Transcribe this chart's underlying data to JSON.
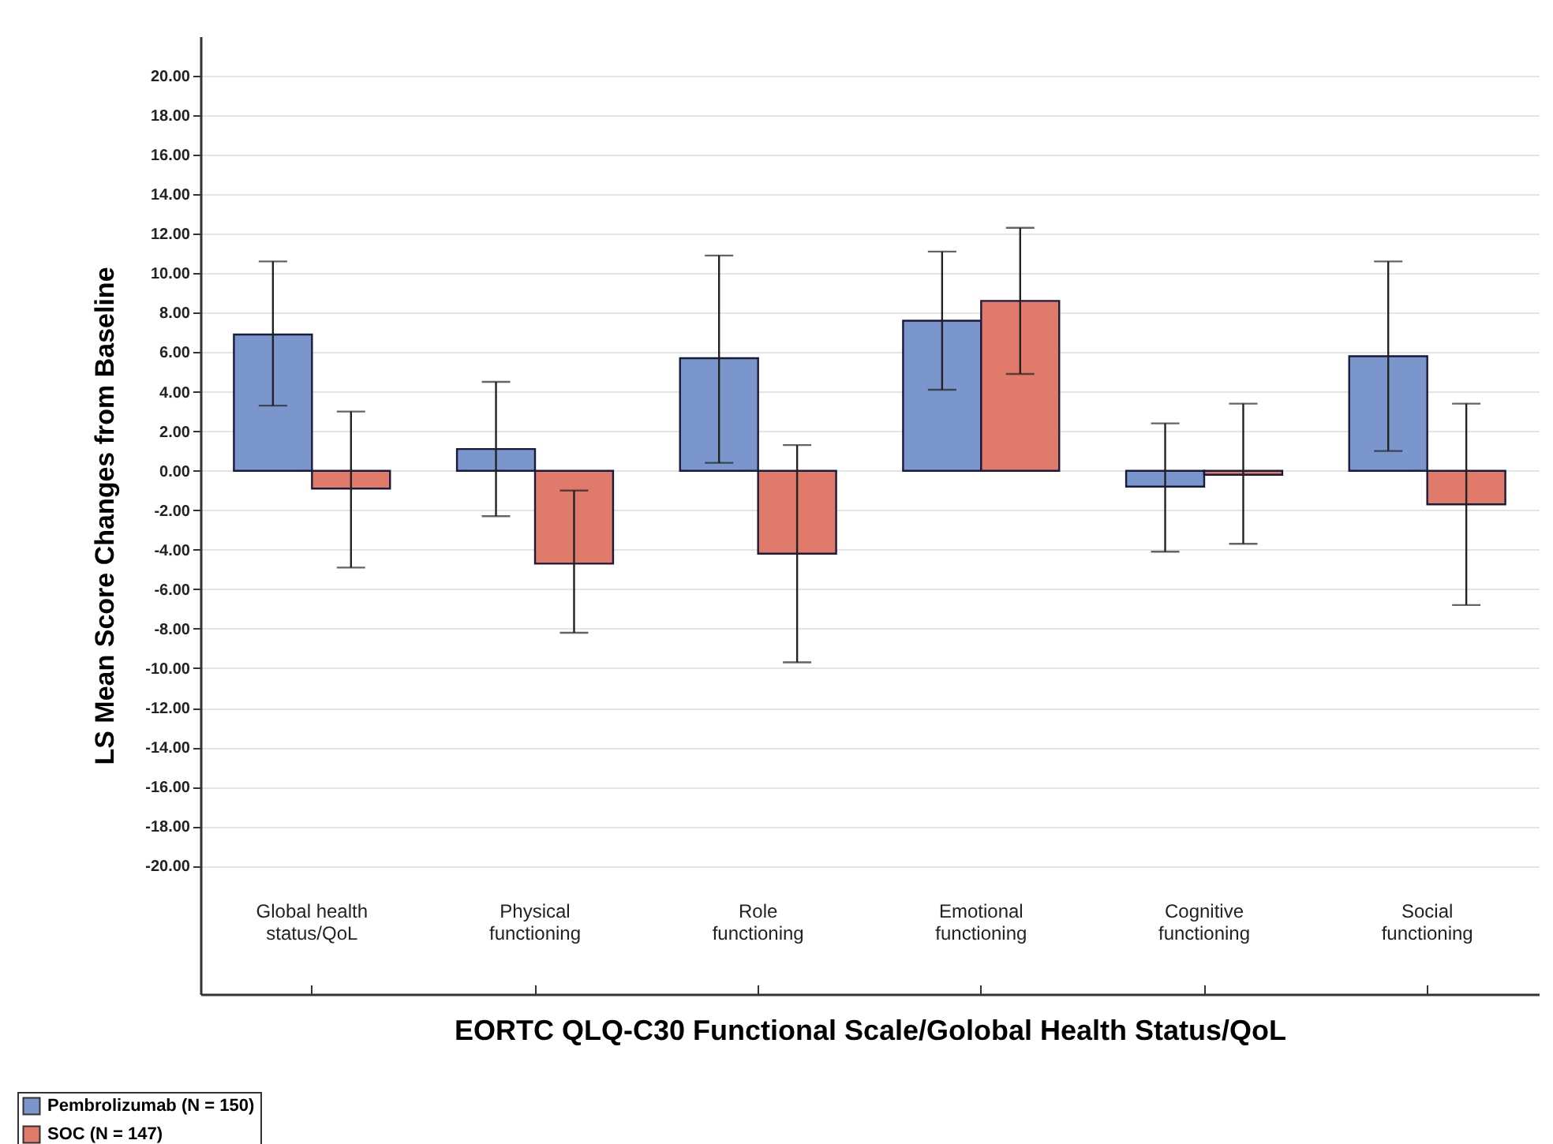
{
  "chart_data": {
    "type": "bar",
    "xlabel": "EORTC QLQ-C30 Functional Scale/Golobal Health Status/QoL",
    "ylabel": "LS Mean Score Changes from Baseline",
    "categories": [
      "Global health status/QoL",
      "Physical functioning",
      "Role functioning",
      "Emotional functioning",
      "Cognitive functioning",
      "Social functioning"
    ],
    "series": [
      {
        "name": "Pembrolizumab (N = 150)",
        "color": "#7b96cc",
        "values": [
          6.9,
          1.1,
          5.7,
          7.6,
          -0.8,
          5.8
        ],
        "errors": [
          [
            3.3,
            10.6
          ],
          [
            -2.3,
            4.5
          ],
          [
            0.4,
            10.9
          ],
          [
            4.1,
            11.1
          ],
          [
            -4.1,
            2.4
          ],
          [
            1.0,
            10.6
          ]
        ]
      },
      {
        "name": "SOC (N = 147)",
        "color": "#e07b6b",
        "values": [
          -0.9,
          -4.7,
          -4.2,
          8.6,
          -0.2,
          -1.7
        ],
        "errors": [
          [
            -4.9,
            3.0
          ],
          [
            -8.2,
            -1.0
          ],
          [
            -9.7,
            1.3
          ],
          [
            4.9,
            12.3
          ],
          [
            -3.7,
            3.4
          ],
          [
            -6.8,
            3.4
          ]
        ]
      }
    ],
    "ylim": [
      -26.5,
      22
    ],
    "yticks": [
      {
        "value": -20,
        "label": "-20.00"
      },
      {
        "value": -18,
        "label": "-18.00"
      },
      {
        "value": -16,
        "label": "-16.00"
      },
      {
        "value": -14,
        "label": "-14.00"
      },
      {
        "value": -12,
        "label": "-12.00"
      },
      {
        "value": -10,
        "label": "-10.00"
      },
      {
        "value": -8,
        "label": "-8.00"
      },
      {
        "value": -6,
        "label": "-6.00"
      },
      {
        "value": -4,
        "label": "-4.00"
      },
      {
        "value": -2,
        "label": "-2.00"
      },
      {
        "value": 0,
        "label": "0.00"
      },
      {
        "value": 2,
        "label": "2.00"
      },
      {
        "value": 4,
        "label": "4.00"
      },
      {
        "value": 6,
        "label": "6.00"
      },
      {
        "value": 8,
        "label": "8.00"
      },
      {
        "value": 10,
        "label": "10.00"
      },
      {
        "value": 12,
        "label": "12.00"
      },
      {
        "value": 14,
        "label": "14.00"
      },
      {
        "value": 16,
        "label": "16.00"
      },
      {
        "value": 18,
        "label": "18.00"
      },
      {
        "value": 20,
        "label": "20.00"
      }
    ],
    "grid": "y",
    "legend": "bottom"
  }
}
